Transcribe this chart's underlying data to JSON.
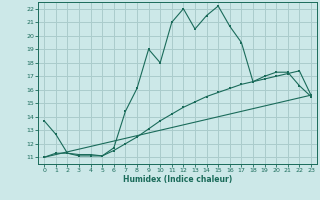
{
  "xlabel": "Humidex (Indice chaleur)",
  "background_color": "#cce8e8",
  "grid_color": "#aacccc",
  "line_color": "#1a6b5a",
  "xlim": [
    -0.5,
    23.5
  ],
  "ylim": [
    10.5,
    22.5
  ],
  "x_ticks": [
    0,
    1,
    2,
    3,
    4,
    5,
    6,
    7,
    8,
    9,
    10,
    11,
    12,
    13,
    14,
    15,
    16,
    17,
    18,
    19,
    20,
    21,
    22,
    23
  ],
  "y_ticks": [
    11,
    12,
    13,
    14,
    15,
    16,
    17,
    18,
    19,
    20,
    21,
    22
  ],
  "series1_x": [
    0,
    1,
    2,
    3,
    4,
    5,
    6,
    7,
    8,
    9,
    10,
    11,
    12,
    13,
    14,
    15,
    16,
    17,
    18,
    19,
    20,
    21,
    22,
    23
  ],
  "series1_y": [
    13.7,
    12.7,
    11.3,
    11.1,
    11.1,
    11.1,
    11.7,
    14.4,
    16.1,
    19.0,
    18.0,
    21.0,
    22.0,
    20.5,
    21.5,
    22.2,
    20.7,
    19.5,
    16.6,
    17.0,
    17.3,
    17.3,
    16.3,
    15.5
  ],
  "series2_x": [
    0,
    1,
    2,
    3,
    4,
    5,
    6,
    7,
    8,
    9,
    10,
    11,
    12,
    13,
    14,
    15,
    16,
    17,
    18,
    19,
    20,
    21,
    22,
    23
  ],
  "series2_y": [
    11.0,
    11.3,
    11.3,
    11.2,
    11.2,
    11.1,
    11.5,
    12.0,
    12.5,
    13.1,
    13.7,
    14.2,
    14.7,
    15.1,
    15.5,
    15.8,
    16.1,
    16.4,
    16.6,
    16.8,
    17.0,
    17.2,
    17.4,
    15.6
  ],
  "series3_x": [
    0,
    23
  ],
  "series3_y": [
    11.0,
    15.6
  ]
}
